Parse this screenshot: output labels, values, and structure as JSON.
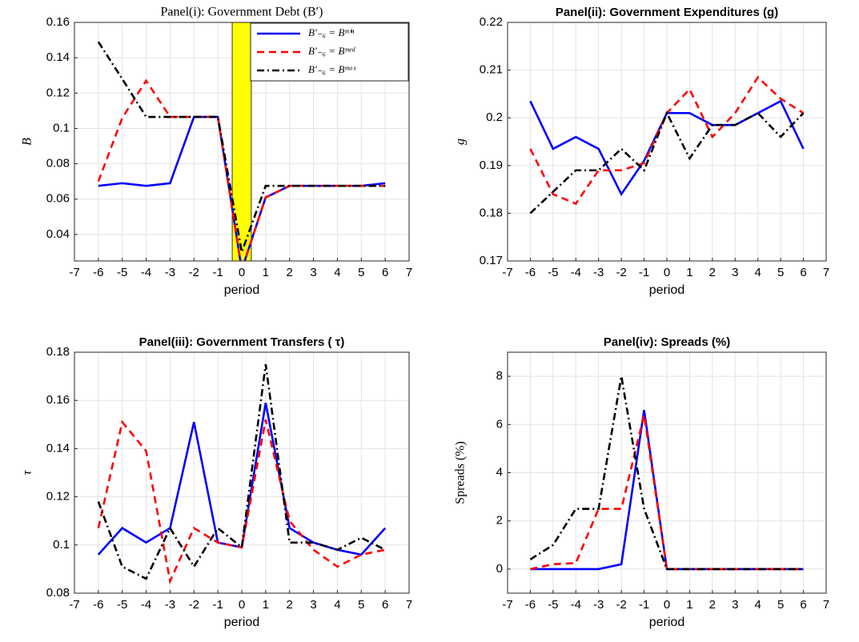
{
  "chart_data": [
    {
      "type": "line",
      "title": "Panel(i): Government Debt (B′)",
      "ylabel": "B",
      "xlabel": "period",
      "x": [
        -6,
        -5,
        -4,
        -3,
        -2,
        -1,
        0,
        1,
        2,
        3,
        4,
        5,
        6
      ],
      "xlim": [
        -7,
        7
      ],
      "xticks": [
        -7,
        -6,
        -5,
        -4,
        -3,
        -2,
        -1,
        0,
        1,
        2,
        3,
        4,
        5,
        6,
        7
      ],
      "ylim": [
        0.025,
        0.16
      ],
      "yticks": [
        0.04,
        0.06,
        0.08,
        0.1,
        0.12,
        0.14,
        0.16
      ],
      "grid": true,
      "legend": "northeast",
      "shade": {
        "x": [
          -0.4,
          0.4
        ],
        "color": "#ffff00"
      },
      "series": [
        {
          "name": "B′₋₆ = Bᵐⁱⁿ",
          "color": "#0000ff",
          "style": "solid",
          "values": [
            0.0675,
            0.069,
            0.0675,
            0.069,
            0.1065,
            0.1065,
            0.02,
            0.061,
            0.0675,
            0.0675,
            0.0675,
            0.0675,
            0.069
          ]
        },
        {
          "name": "B′₋₆ = Bᵐᵉᵈ",
          "color": "#ff0000",
          "style": "dashed",
          "values": [
            0.07,
            0.106,
            0.127,
            0.1065,
            0.1065,
            0.1065,
            0.02,
            0.061,
            0.0675,
            0.0675,
            0.0675,
            0.0675,
            0.0675
          ]
        },
        {
          "name": "B′₋₆ = Bᵐᵃˣ",
          "color": "#000000",
          "style": "dashdot",
          "values": [
            0.149,
            0.128,
            0.1065,
            0.1065,
            0.1065,
            0.1065,
            0.03,
            0.0675,
            0.0675,
            0.0675,
            0.0675,
            0.0675,
            0.0675
          ]
        }
      ]
    },
    {
      "type": "line",
      "title": "Panel(ii): Government Expenditures (g)",
      "ylabel": "g",
      "xlabel": "period",
      "x": [
        -6,
        -5,
        -4,
        -3,
        -2,
        -1,
        0,
        1,
        2,
        3,
        4,
        5,
        6
      ],
      "xlim": [
        -7,
        7
      ],
      "xticks": [
        -7,
        -6,
        -5,
        -4,
        -3,
        -2,
        -1,
        0,
        1,
        2,
        3,
        4,
        5,
        6,
        7
      ],
      "ylim": [
        0.17,
        0.22
      ],
      "yticks": [
        0.17,
        0.18,
        0.19,
        0.2,
        0.21,
        0.22
      ],
      "grid": true,
      "series": [
        {
          "color": "#0000ff",
          "style": "solid",
          "values": [
            0.2035,
            0.1935,
            0.196,
            0.1935,
            0.184,
            0.191,
            0.201,
            0.201,
            0.1985,
            0.1985,
            0.201,
            0.2035,
            0.1935
          ]
        },
        {
          "color": "#ff0000",
          "style": "dashed",
          "values": [
            0.1935,
            0.184,
            0.182,
            0.189,
            0.189,
            0.1905,
            0.201,
            0.206,
            0.196,
            0.201,
            0.2085,
            0.204,
            0.201
          ]
        },
        {
          "color": "#000000",
          "style": "dashdot",
          "values": [
            0.18,
            0.1845,
            0.189,
            0.189,
            0.1935,
            0.189,
            0.201,
            0.1915,
            0.1985,
            0.1985,
            0.201,
            0.196,
            0.201
          ]
        }
      ]
    },
    {
      "type": "line",
      "title": "Panel(iii): Government Transfers ( τ)",
      "ylabel": "τ",
      "xlabel": "period",
      "x": [
        -6,
        -5,
        -4,
        -3,
        -2,
        -1,
        0,
        1,
        2,
        3,
        4,
        5,
        6
      ],
      "xlim": [
        -7,
        7
      ],
      "xticks": [
        -7,
        -6,
        -5,
        -4,
        -3,
        -2,
        -1,
        0,
        1,
        2,
        3,
        4,
        5,
        6,
        7
      ],
      "ylim": [
        0.08,
        0.18
      ],
      "yticks": [
        0.08,
        0.1,
        0.12,
        0.14,
        0.16,
        0.18
      ],
      "grid": true,
      "series": [
        {
          "color": "#0000ff",
          "style": "solid",
          "values": [
            0.096,
            0.107,
            0.101,
            0.107,
            0.151,
            0.101,
            0.099,
            0.159,
            0.107,
            0.101,
            0.098,
            0.096,
            0.107
          ]
        },
        {
          "color": "#ff0000",
          "style": "dashed",
          "values": [
            0.107,
            0.151,
            0.139,
            0.085,
            0.107,
            0.101,
            0.099,
            0.152,
            0.11,
            0.098,
            0.091,
            0.096,
            0.098
          ]
        },
        {
          "color": "#000000",
          "style": "dashdot",
          "values": [
            0.118,
            0.091,
            0.086,
            0.107,
            0.091,
            0.107,
            0.099,
            0.175,
            0.101,
            0.101,
            0.098,
            0.103,
            0.098
          ]
        }
      ]
    },
    {
      "type": "line",
      "title": "Panel(iv): Spreads (%)",
      "ylabel": "Spreads (%)",
      "xlabel": "period",
      "x": [
        -6,
        -5,
        -4,
        -3,
        -2,
        -1,
        0,
        1,
        2,
        3,
        4,
        5,
        6
      ],
      "xlim": [
        -7,
        7
      ],
      "xticks": [
        -7,
        -6,
        -5,
        -4,
        -3,
        -2,
        -1,
        0,
        1,
        2,
        3,
        4,
        5,
        6,
        7
      ],
      "ylim": [
        -1,
        9
      ],
      "yticks": [
        0,
        2,
        4,
        6,
        8
      ],
      "grid": true,
      "series": [
        {
          "color": "#0000ff",
          "style": "solid",
          "values": [
            0,
            0,
            0,
            0,
            0.2,
            6.6,
            0,
            0,
            0,
            0,
            0,
            0,
            0
          ]
        },
        {
          "color": "#ff0000",
          "style": "dashed",
          "values": [
            0,
            0.2,
            0.25,
            2.5,
            2.5,
            6.4,
            0,
            0,
            0,
            0,
            0,
            0,
            0
          ]
        },
        {
          "color": "#000000",
          "style": "dashdot",
          "values": [
            0.4,
            1,
            2.5,
            2.5,
            8,
            2.5,
            0,
            0,
            0,
            0,
            0,
            0,
            0
          ]
        }
      ]
    }
  ]
}
